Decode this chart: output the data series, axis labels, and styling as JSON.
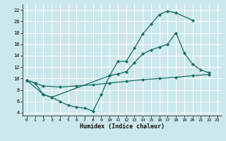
{
  "bg_color": "#cce8ec",
  "grid_color": "#ffffff",
  "line_color": "#1a6b5e",
  "xlabel": "Humidex (Indice chaleur)",
  "xlim": [
    -0.5,
    23.5
  ],
  "ylim": [
    3.5,
    23
  ],
  "xticks": [
    0,
    1,
    2,
    3,
    4,
    5,
    6,
    7,
    8,
    9,
    10,
    11,
    12,
    13,
    14,
    15,
    16,
    17,
    18,
    19,
    20,
    21,
    22,
    23
  ],
  "yticks": [
    4,
    6,
    8,
    10,
    12,
    14,
    16,
    18,
    20,
    22
  ],
  "curve_top_x": [
    0,
    1,
    2,
    3,
    10,
    11,
    12,
    13,
    14,
    15,
    16,
    17,
    18,
    20
  ],
  "curve_top_y": [
    9.7,
    9.2,
    7.2,
    6.7,
    10.5,
    13.0,
    13.0,
    15.3,
    17.8,
    19.5,
    21.2,
    21.8,
    21.5,
    20.2
  ],
  "curve_mid_x": [
    0,
    2,
    3,
    4,
    5,
    6,
    7,
    8,
    9,
    10,
    11,
    12,
    13,
    14,
    15,
    16,
    17,
    18,
    19,
    20,
    21,
    22
  ],
  "curve_mid_y": [
    9.7,
    7.2,
    6.7,
    6.0,
    5.3,
    5.0,
    4.8,
    4.3,
    7.2,
    10.5,
    10.8,
    11.2,
    12.8,
    14.3,
    15.0,
    15.5,
    16.0,
    18.0,
    14.5,
    12.5,
    11.5,
    11.0
  ],
  "curve_bot_x": [
    0,
    1,
    2,
    4,
    6,
    8,
    10,
    12,
    14,
    16,
    18,
    20,
    22
  ],
  "curve_bot_y": [
    9.7,
    9.2,
    8.7,
    8.5,
    8.7,
    8.9,
    9.2,
    9.5,
    9.8,
    10.0,
    10.2,
    10.5,
    10.7
  ]
}
